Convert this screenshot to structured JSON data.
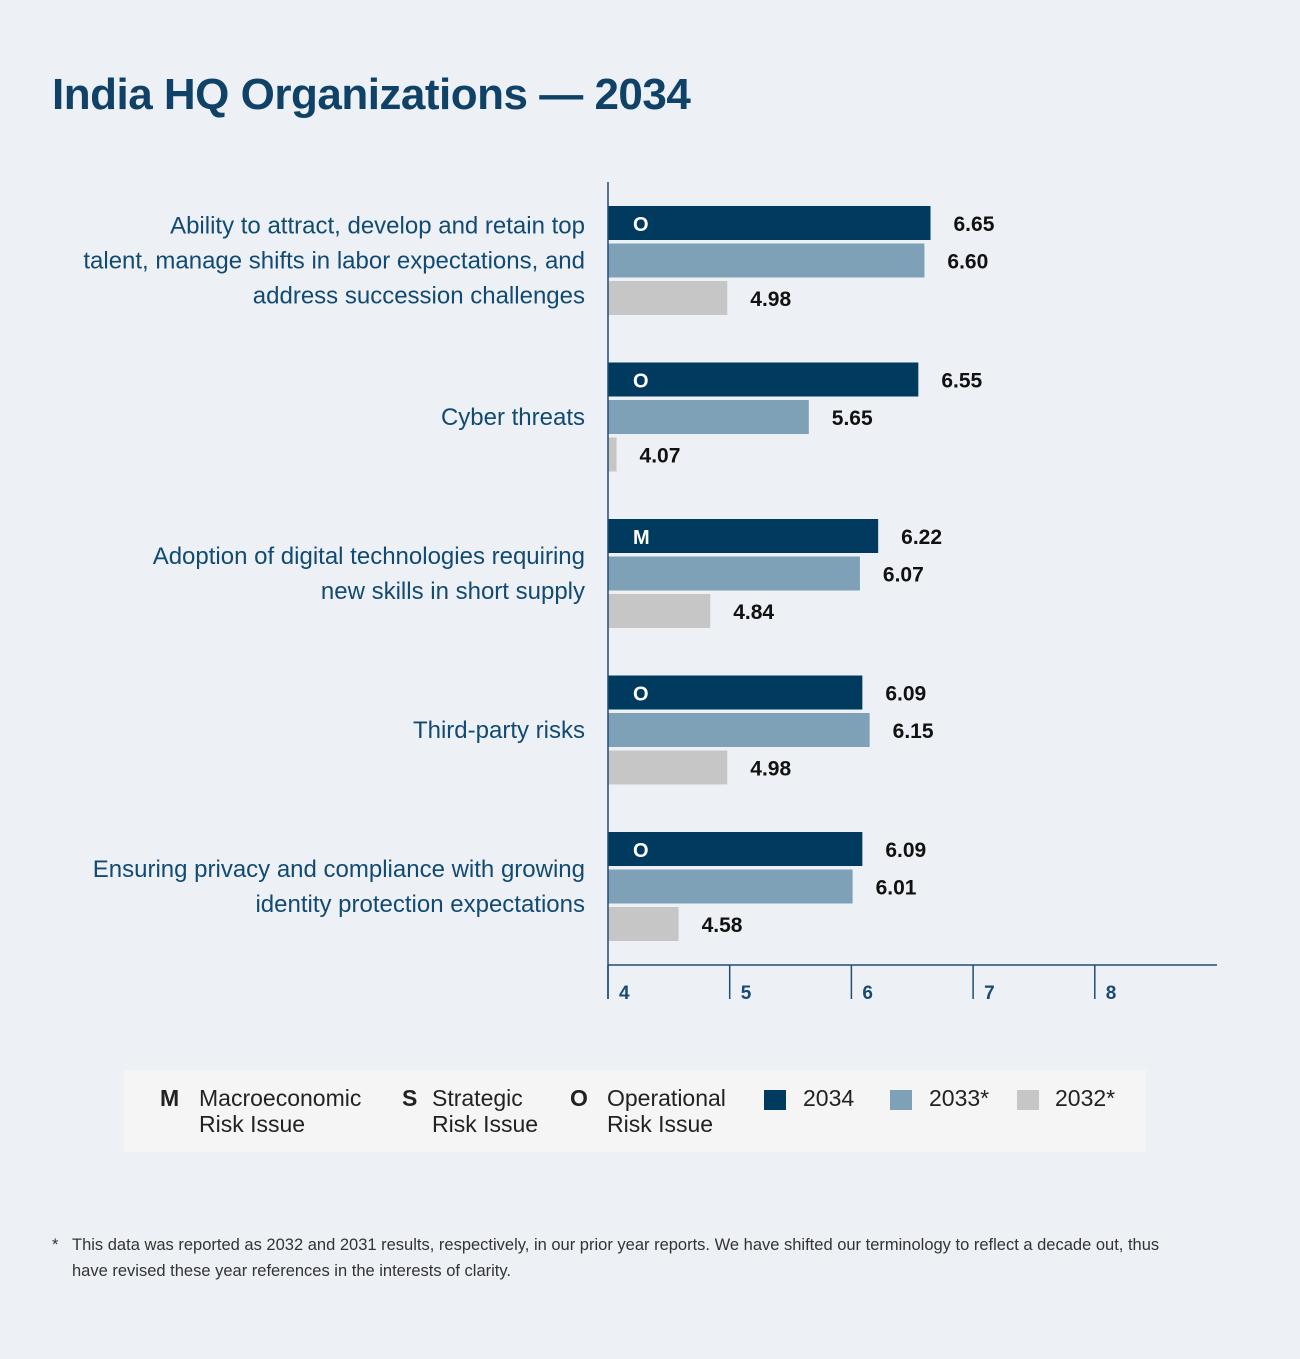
{
  "title": "India HQ Organizations — 2034",
  "colors": {
    "s2034": "#003a5f",
    "s2033": "#7fa1b7",
    "s2032": "#c6c6c6",
    "accent": "#0f4266"
  },
  "chart_data": {
    "type": "bar",
    "orientation": "horizontal",
    "categories": [
      [
        "Ability to attract, develop and retain top",
        "talent, manage shifts in labor expectations, and",
        "address succession challenges"
      ],
      [
        "Cyber threats"
      ],
      [
        "Adoption of digital technologies requiring",
        "new skills in short supply"
      ],
      [
        "Third-party risks"
      ],
      [
        "Ensuring privacy and compliance with growing",
        "identity protection expectations"
      ]
    ],
    "risk_types": [
      "O",
      "O",
      "M",
      "O",
      "O"
    ],
    "series": [
      {
        "name": "2034",
        "values": [
          6.65,
          6.55,
          6.22,
          6.09,
          6.09
        ]
      },
      {
        "name": "2033*",
        "values": [
          6.6,
          5.65,
          6.07,
          6.15,
          6.01
        ]
      },
      {
        "name": "2032*",
        "values": [
          4.98,
          4.07,
          4.84,
          4.98,
          4.58
        ]
      }
    ],
    "value_labels": [
      [
        "6.65",
        "6.55",
        "6.22",
        "6.09",
        "6.09"
      ],
      [
        "6.60",
        "5.65",
        "6.07",
        "6.15",
        "6.01"
      ],
      [
        "4.98",
        "4.07",
        "4.84",
        "4.98",
        "4.58"
      ]
    ],
    "xlim": [
      4,
      9
    ],
    "xticks": [
      "4",
      "5",
      "6",
      "7",
      "8"
    ]
  },
  "legend": {
    "types": [
      {
        "letter": "M",
        "line1": "Macroeconomic",
        "line2": "Risk Issue"
      },
      {
        "letter": "S",
        "line1": "Strategic",
        "line2": "Risk Issue"
      },
      {
        "letter": "O",
        "line1": "Operational",
        "line2": "Risk Issue"
      }
    ],
    "series": [
      "2034",
      "2033*",
      "2032*"
    ]
  },
  "footnote": {
    "marker": "*",
    "text": "This data was reported as 2032 and 2031 results, respectively, in our prior year reports. We have shifted our terminology to reflect a decade out, thus have revised these year references in the interests of clarity."
  }
}
